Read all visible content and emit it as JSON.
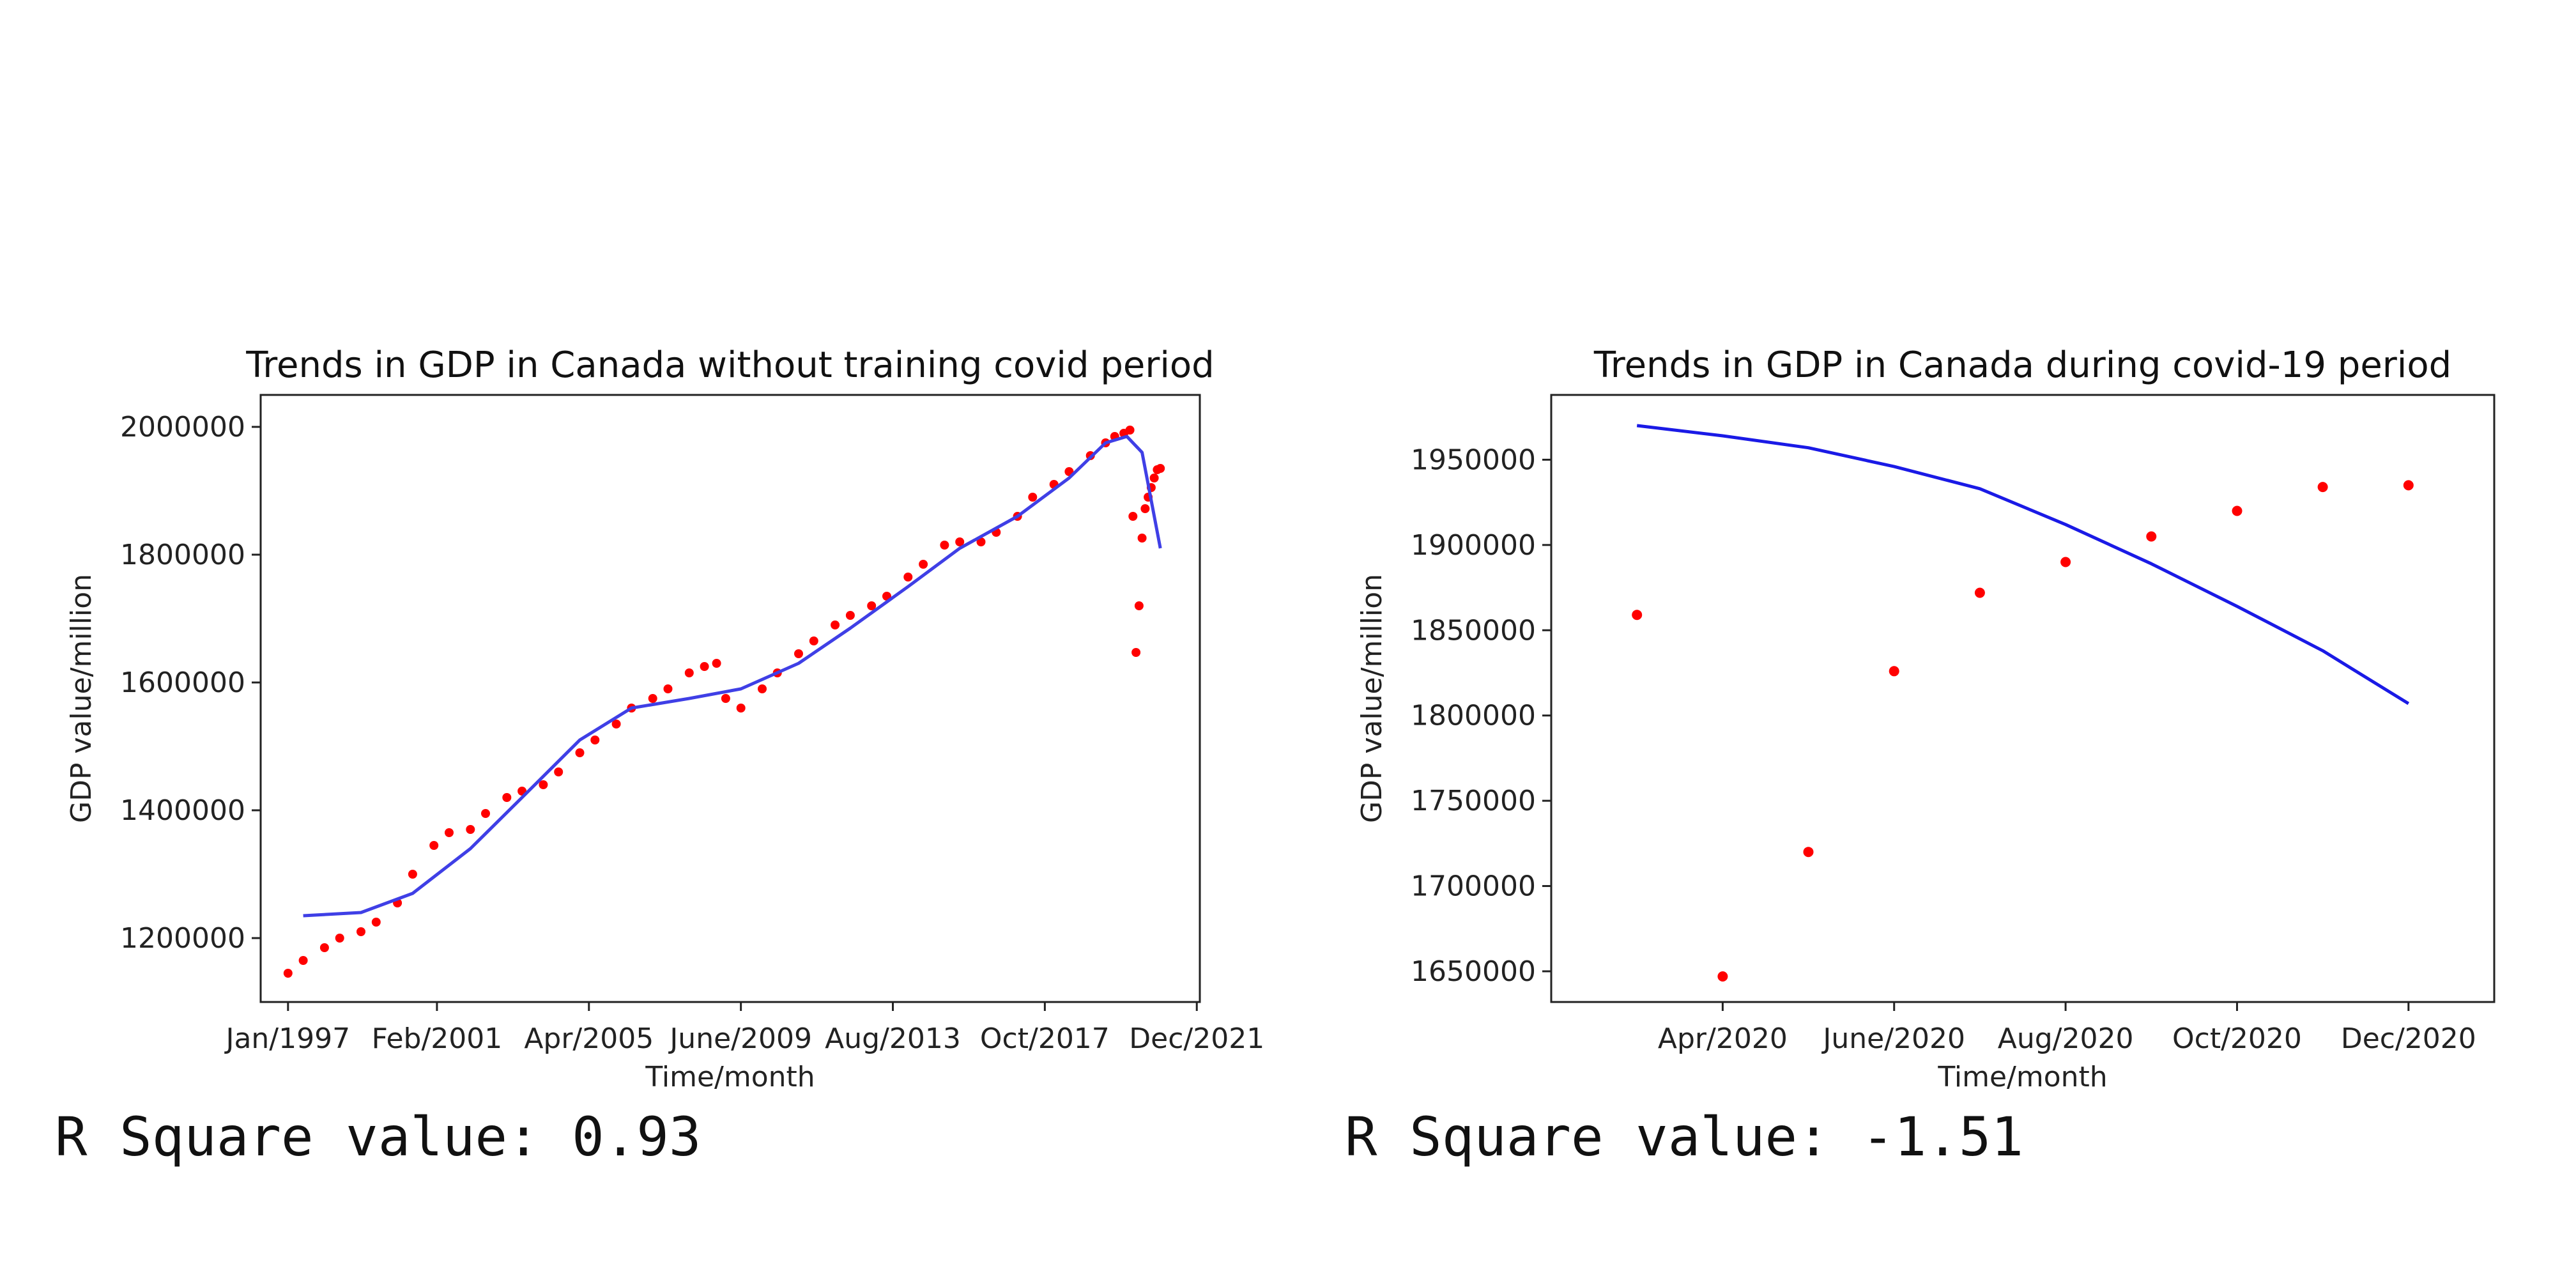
{
  "chart_data": [
    {
      "type": "scatter",
      "title": "Trends in GDP in Canada without training covid period",
      "xlabel": "Time/month",
      "ylabel": "GDP value/million",
      "xtick_labels": [
        "Jan/1997",
        "Feb/2001",
        "Apr/2005",
        "June/2009",
        "Aug/2013",
        "Oct/2017",
        "Dec/2021"
      ],
      "ytick_labels": [
        "1200000",
        "1400000",
        "1600000",
        "1800000",
        "2000000"
      ],
      "xlim": [
        "1996-04",
        "2022-01"
      ],
      "ylim": [
        1100000,
        2050000
      ],
      "grid": false,
      "colors": {
        "points": "#ff0000",
        "line": "#3f3fe6"
      },
      "series": [
        {
          "kind": "points",
          "points": [
            [
              "1997-01",
              1145000
            ],
            [
              "1997-06",
              1165000
            ],
            [
              "1998-01",
              1185000
            ],
            [
              "1998-06",
              1200000
            ],
            [
              "1999-01",
              1210000
            ],
            [
              "1999-06",
              1225000
            ],
            [
              "2000-01",
              1255000
            ],
            [
              "2000-06",
              1300000
            ],
            [
              "2001-01",
              1345000
            ],
            [
              "2001-06",
              1365000
            ],
            [
              "2002-01",
              1370000
            ],
            [
              "2002-06",
              1395000
            ],
            [
              "2003-01",
              1420000
            ],
            [
              "2003-06",
              1430000
            ],
            [
              "2004-01",
              1440000
            ],
            [
              "2004-06",
              1460000
            ],
            [
              "2005-01",
              1490000
            ],
            [
              "2005-06",
              1510000
            ],
            [
              "2006-01",
              1535000
            ],
            [
              "2006-06",
              1560000
            ],
            [
              "2007-01",
              1575000
            ],
            [
              "2007-06",
              1590000
            ],
            [
              "2008-01",
              1615000
            ],
            [
              "2008-06",
              1625000
            ],
            [
              "2008-10",
              1630000
            ],
            [
              "2009-01",
              1575000
            ],
            [
              "2009-06",
              1560000
            ],
            [
              "2010-01",
              1590000
            ],
            [
              "2010-06",
              1615000
            ],
            [
              "2011-01",
              1645000
            ],
            [
              "2011-06",
              1665000
            ],
            [
              "2012-01",
              1690000
            ],
            [
              "2012-06",
              1705000
            ],
            [
              "2013-01",
              1720000
            ],
            [
              "2013-06",
              1735000
            ],
            [
              "2014-01",
              1765000
            ],
            [
              "2014-06",
              1785000
            ],
            [
              "2015-01",
              1815000
            ],
            [
              "2015-06",
              1820000
            ],
            [
              "2016-01",
              1820000
            ],
            [
              "2016-06",
              1835000
            ],
            [
              "2017-01",
              1860000
            ],
            [
              "2017-06",
              1890000
            ],
            [
              "2018-01",
              1910000
            ],
            [
              "2018-06",
              1930000
            ],
            [
              "2019-01",
              1955000
            ],
            [
              "2019-06",
              1975000
            ],
            [
              "2019-09",
              1985000
            ],
            [
              "2019-12",
              1990000
            ],
            [
              "2020-02",
              1995000
            ],
            [
              "2020-03",
              1860000
            ],
            [
              "2020-04",
              1647000
            ],
            [
              "2020-05",
              1720000
            ],
            [
              "2020-06",
              1826000
            ],
            [
              "2020-07",
              1872000
            ],
            [
              "2020-08",
              1890000
            ],
            [
              "2020-09",
              1905000
            ],
            [
              "2020-10",
              1920000
            ],
            [
              "2020-11",
              1933000
            ],
            [
              "2020-12",
              1935000
            ]
          ]
        },
        {
          "kind": "line",
          "points": [
            [
              "1997-06",
              1235000
            ],
            [
              "1999-01",
              1240000
            ],
            [
              "2000-06",
              1270000
            ],
            [
              "2002-01",
              1340000
            ],
            [
              "2003-06",
              1420000
            ],
            [
              "2005-01",
              1510000
            ],
            [
              "2006-06",
              1560000
            ],
            [
              "2008-01",
              1575000
            ],
            [
              "2009-06",
              1590000
            ],
            [
              "2011-01",
              1630000
            ],
            [
              "2012-06",
              1685000
            ],
            [
              "2014-01",
              1750000
            ],
            [
              "2015-06",
              1810000
            ],
            [
              "2017-01",
              1860000
            ],
            [
              "2018-06",
              1920000
            ],
            [
              "2019-06",
              1975000
            ],
            [
              "2020-01",
              1985000
            ],
            [
              "2020-06",
              1960000
            ],
            [
              "2020-12",
              1810000
            ]
          ]
        }
      ]
    },
    {
      "type": "scatter",
      "title": "Trends in GDP in Canada during covid-19 period",
      "xlabel": "Time/month",
      "ylabel": "GDP value/million",
      "xtick_labels": [
        "Apr/2020",
        "June/2020",
        "Aug/2020",
        "Oct/2020",
        "Dec/2020"
      ],
      "ytick_labels": [
        "1650000",
        "1700000",
        "1750000",
        "1800000",
        "1850000",
        "1900000",
        "1950000"
      ],
      "xlim": [
        "2020-02",
        "2021-01"
      ],
      "ylim": [
        1632000,
        1988000
      ],
      "grid": false,
      "colors": {
        "points": "#ff0000",
        "line": "#1a1ae6"
      },
      "series": [
        {
          "kind": "points",
          "points": [
            [
              "2020-03",
              1859000
            ],
            [
              "2020-04",
              1647000
            ],
            [
              "2020-05",
              1720000
            ],
            [
              "2020-06",
              1826000
            ],
            [
              "2020-07",
              1872000
            ],
            [
              "2020-08",
              1890000
            ],
            [
              "2020-09",
              1905000
            ],
            [
              "2020-10",
              1920000
            ],
            [
              "2020-11",
              1934000
            ],
            [
              "2020-12",
              1935000
            ]
          ]
        },
        {
          "kind": "line",
          "points": [
            [
              "2020-03",
              1970000
            ],
            [
              "2020-04",
              1964000
            ],
            [
              "2020-05",
              1957000
            ],
            [
              "2020-06",
              1946000
            ],
            [
              "2020-07",
              1933000
            ],
            [
              "2020-08",
              1912000
            ],
            [
              "2020-09",
              1889000
            ],
            [
              "2020-10",
              1864000
            ],
            [
              "2020-11",
              1838000
            ],
            [
              "2020-12",
              1807000
            ]
          ]
        }
      ]
    }
  ],
  "results": {
    "left_r_square": "R Square value: 0.93",
    "right_r_square": "R Square value: -1.51"
  }
}
